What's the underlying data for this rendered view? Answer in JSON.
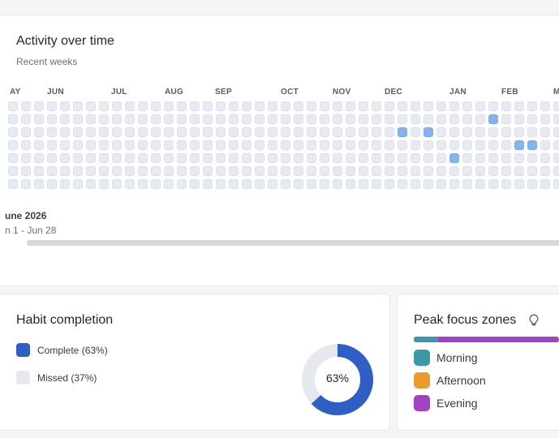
{
  "activity": {
    "title": "Activity over time",
    "subtitle": "Recent weeks",
    "months": [
      "AY",
      "JUN",
      "JUL",
      "AUG",
      "SEP",
      "OCT",
      "NOV",
      "DEC",
      "JAN",
      "FEB",
      "M"
    ],
    "range_title": "une 2026",
    "range_subtitle": "n 1 - Jun 28"
  },
  "habit": {
    "title": "Habit completion",
    "complete_label": "Complete (63%)",
    "missed_label": "Missed (37%)",
    "percent_label": "63%",
    "complete_fraction": 0.63,
    "complete_color": "#2f5fc4",
    "missed_color": "#e5e8ed"
  },
  "peak": {
    "title": "Peak focus zones",
    "zones": [
      {
        "label": "Morning",
        "color": "#3d97a9"
      },
      {
        "label": "Afternoon",
        "color": "#e99b2c"
      },
      {
        "label": "Evening",
        "color": "#a042c2"
      }
    ],
    "icon": "lightbulb-icon"
  }
}
